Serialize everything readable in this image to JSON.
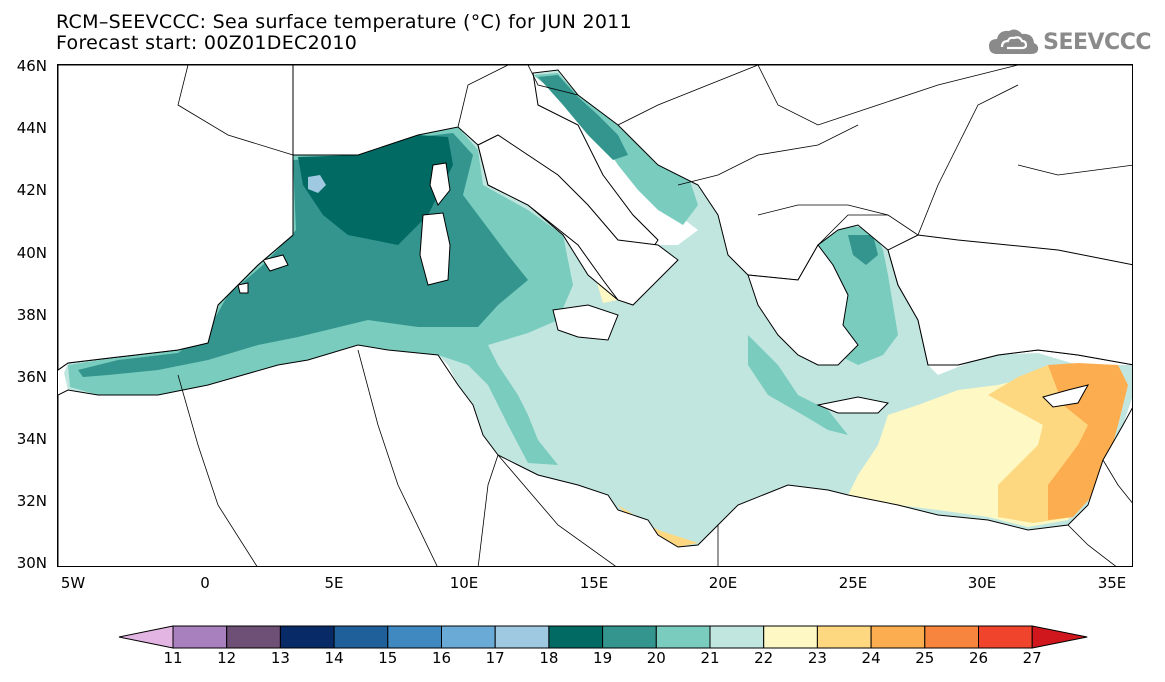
{
  "title": {
    "line1": "RCM–SEEVCCC: Sea surface temperature (°C) for JUN 2011",
    "line2": "Forecast start: 00Z01DEC2010"
  },
  "logo": {
    "text": "SEEVCCC",
    "icon": "cloud-icon"
  },
  "map": {
    "lat_labels": [
      "46N",
      "44N",
      "42N",
      "40N",
      "38N",
      "36N",
      "34N",
      "32N",
      "30N"
    ],
    "lon_labels": [
      "5W",
      "0",
      "5E",
      "10E",
      "15E",
      "20E",
      "25E",
      "30E",
      "35E"
    ],
    "lon_range": [
      -5.5,
      36.0
    ],
    "lat_range": [
      30.0,
      46.0
    ],
    "land_color": "#ffffff",
    "boundary_color": "#000000"
  },
  "colorbar": {
    "labels": [
      "11",
      "12",
      "13",
      "14",
      "15",
      "16",
      "17",
      "18",
      "19",
      "20",
      "21",
      "22",
      "23",
      "24",
      "25",
      "26",
      "27"
    ],
    "colors": [
      "#e2b5e2",
      "#a880bd",
      "#6e4f75",
      "#082a66",
      "#1f5f9a",
      "#3f89c0",
      "#6aaad6",
      "#9ec9e0",
      "#006a63",
      "#33958d",
      "#79ccbe",
      "#c1e6e0",
      "#fdf8c4",
      "#fed880",
      "#fbad4f",
      "#f7853d",
      "#f0452c",
      "#d0171e"
    ]
  }
}
